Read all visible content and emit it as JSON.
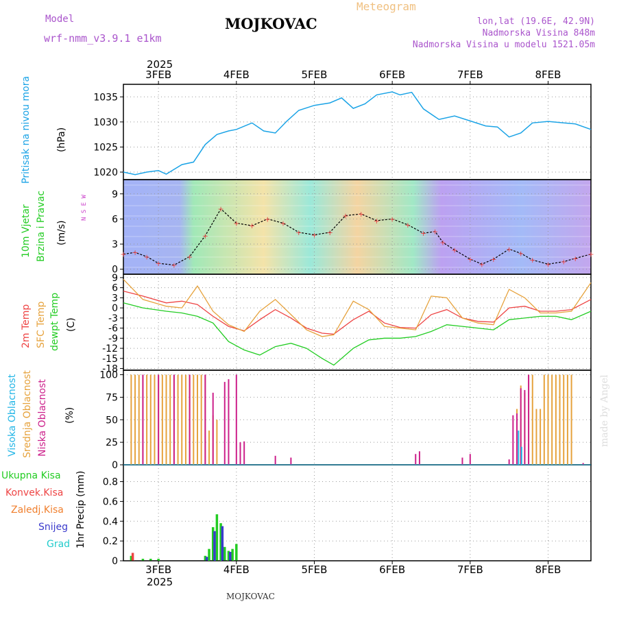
{
  "header": {
    "model_label": "Model",
    "model_name": "wrf-nmm_v3.9.1 e1km",
    "station": "MOJKOVAC",
    "subtitle": "Meteogram",
    "lonlat": "lon,lat (19.6E, 42.9N)",
    "elevation": "Nadmorska Visina 848m",
    "model_elevation": "Nadmorska Visina u modelu 1521.05m",
    "footer_station": "MOJKOVAC",
    "credit": "made by Angel"
  },
  "colors": {
    "pressure": "#1aa3e6",
    "wind_label": "#22cc22",
    "wind_dir_label": "#cc44cc",
    "temp2m": "#ee4444",
    "sfc": "#e6a23c",
    "dewpt": "#22cc22",
    "cloud_high": "#22b5e6",
    "cloud_mid": "#e6a23c",
    "cloud_low": "#cc1f8a",
    "precip_total": "#22cc22",
    "precip_conv": "#ee4444",
    "precip_frz": "#f07f2d",
    "snow": "#3a3acc",
    "hail": "#22cccc",
    "model_label": "#aa55cc",
    "subtitle": "#f0c080"
  },
  "time_axis": {
    "year": "2025",
    "days": [
      "3FEB",
      "4FEB",
      "5FEB",
      "6FEB",
      "7FEB",
      "8FEB"
    ],
    "start_day": 2.55,
    "end_day": 8.55
  },
  "panels": {
    "pressure": {
      "label1": "Pritisak na nivou mora",
      "unit": "(hPa)"
    },
    "wind": {
      "label1": "10m Vjetar",
      "label2": "Brzina i Pravac",
      "unit": "(m/s)",
      "compass": "N  S  E  W"
    },
    "temp": {
      "label1": "2m Temp",
      "label2": "SFC Temp",
      "label3": "dewpt Temp",
      "unit": "(C)"
    },
    "cloud": {
      "label1": "Visoka Oblacnost",
      "label2": "Srednja Oblacnost",
      "label3": "Niska Oblacnost",
      "unit": "(%)"
    },
    "precip": {
      "unit_label": "1hr Precip (mm)",
      "legend": [
        "Ukupna Kisa",
        "Konvek.Kisa",
        "Zaledj.Kisa",
        "Snijeg",
        "Grad"
      ]
    }
  },
  "chart_data": [
    {
      "type": "line",
      "name": "pressure",
      "ylim": [
        1018.5,
        1037.5
      ],
      "yticks": [
        1020,
        1025,
        1030,
        1035
      ],
      "x": [
        2.55,
        2.7,
        2.85,
        3.0,
        3.1,
        3.3,
        3.45,
        3.6,
        3.75,
        3.9,
        4.0,
        4.2,
        4.35,
        4.5,
        4.65,
        4.8,
        5.0,
        5.2,
        5.35,
        5.5,
        5.65,
        5.8,
        6.0,
        6.1,
        6.25,
        6.4,
        6.6,
        6.8,
        7.0,
        7.2,
        7.35,
        7.5,
        7.65,
        7.8,
        8.0,
        8.2,
        8.35,
        8.55
      ],
      "y": [
        1020.0,
        1019.5,
        1020.0,
        1020.3,
        1019.6,
        1021.5,
        1022.0,
        1025.5,
        1027.5,
        1028.2,
        1028.5,
        1029.8,
        1028.2,
        1027.8,
        1030.2,
        1032.3,
        1033.3,
        1033.8,
        1034.8,
        1032.7,
        1033.6,
        1035.4,
        1036.0,
        1035.4,
        1035.9,
        1032.6,
        1030.5,
        1031.2,
        1030.2,
        1029.2,
        1029.0,
        1027.0,
        1027.8,
        1029.8,
        1030.1,
        1029.8,
        1029.6,
        1028.5
      ]
    },
    {
      "type": "line",
      "name": "wind_speed",
      "ylim": [
        -0.6,
        10.7
      ],
      "yticks": [
        0,
        3,
        6,
        9
      ],
      "x": [
        2.55,
        2.7,
        2.85,
        3.0,
        3.2,
        3.4,
        3.6,
        3.8,
        4.0,
        4.2,
        4.4,
        4.6,
        4.8,
        5.0,
        5.2,
        5.4,
        5.6,
        5.8,
        6.0,
        6.2,
        6.4,
        6.55,
        6.65,
        6.8,
        7.0,
        7.15,
        7.3,
        7.5,
        7.65,
        7.8,
        8.0,
        8.2,
        8.35,
        8.55
      ],
      "y": [
        1.8,
        2.0,
        1.5,
        0.7,
        0.5,
        1.5,
        4.0,
        7.2,
        5.5,
        5.2,
        6.0,
        5.5,
        4.4,
        4.1,
        4.4,
        6.4,
        6.6,
        5.8,
        6.0,
        5.3,
        4.3,
        4.5,
        3.2,
        2.3,
        1.2,
        0.6,
        1.2,
        2.4,
        1.9,
        1.1,
        0.6,
        0.9,
        1.3,
        1.8
      ]
    },
    {
      "type": "line",
      "name": "temperature",
      "ylim": [
        -18.5,
        10.0
      ],
      "yticks": [
        -18,
        -15,
        -12,
        -9,
        -6,
        -3,
        0,
        3,
        6,
        9
      ],
      "x": [
        2.55,
        2.8,
        3.1,
        3.3,
        3.5,
        3.7,
        3.9,
        4.1,
        4.3,
        4.5,
        4.7,
        4.9,
        5.1,
        5.25,
        5.5,
        5.7,
        5.9,
        6.1,
        6.3,
        6.5,
        6.7,
        6.9,
        7.1,
        7.3,
        7.5,
        7.7,
        7.9,
        8.1,
        8.3,
        8.55
      ],
      "series": [
        {
          "name": "2m Temp",
          "color": "#ee4444",
          "values": [
            5.0,
            3.5,
            1.5,
            2.0,
            1.0,
            -2.5,
            -5.5,
            -6.8,
            -3.5,
            -0.5,
            -3.0,
            -6.0,
            -7.5,
            -7.8,
            -3.5,
            -1.0,
            -4.5,
            -5.8,
            -6.0,
            -2.0,
            -0.5,
            -3.0,
            -4.0,
            -4.2,
            0.0,
            0.5,
            -1.0,
            -1.0,
            -0.5,
            2.5
          ]
        },
        {
          "name": "SFC Temp",
          "color": "#e6a23c",
          "values": [
            8.5,
            2.5,
            0.5,
            0.0,
            6.5,
            -1.0,
            -5.0,
            -7.0,
            -1.0,
            2.5,
            -2.0,
            -6.5,
            -8.5,
            -8.0,
            2.0,
            -0.5,
            -5.5,
            -6.0,
            -6.5,
            3.5,
            3.0,
            -3.0,
            -4.5,
            -5.0,
            5.5,
            3.0,
            -1.5,
            -1.5,
            -1.0,
            7.5
          ]
        },
        {
          "name": "dewpt Temp",
          "color": "#22cc22",
          "values": [
            1.5,
            0.0,
            -1.0,
            -1.5,
            -2.5,
            -4.5,
            -10.0,
            -12.5,
            -14.0,
            -11.5,
            -10.5,
            -12.0,
            -15.0,
            -17.0,
            -12.0,
            -9.5,
            -9.0,
            -9.0,
            -8.5,
            -7.0,
            -5.0,
            -5.5,
            -6.0,
            -6.5,
            -3.5,
            -3.0,
            -2.5,
            -2.5,
            -3.5,
            -1.0
          ]
        }
      ]
    },
    {
      "type": "bar",
      "name": "cloud_cover",
      "ylim": [
        0,
        105
      ],
      "yticks": [
        0,
        25,
        50,
        75,
        100
      ],
      "series": [
        {
          "name": "Srednja Oblacnost",
          "color": "#e6a23c",
          "x": [
            2.65,
            2.7,
            2.75,
            2.8,
            2.85,
            2.9,
            2.95,
            3.0,
            3.05,
            3.1,
            3.15,
            3.2,
            3.25,
            3.3,
            3.35,
            3.4,
            3.45,
            3.5,
            3.55,
            3.6,
            3.65,
            3.7,
            3.75,
            7.6,
            7.65,
            7.7,
            7.75,
            7.8,
            7.85,
            7.9,
            7.95,
            8.0,
            8.05,
            8.1,
            8.15,
            8.2,
            8.25,
            8.3
          ],
          "values": [
            100,
            100,
            100,
            100,
            100,
            100,
            100,
            100,
            100,
            100,
            100,
            100,
            100,
            100,
            100,
            100,
            100,
            100,
            100,
            100,
            38,
            55,
            50,
            62,
            88,
            80,
            100,
            100,
            62,
            62,
            100,
            100,
            100,
            100,
            100,
            100,
            100,
            100
          ]
        },
        {
          "name": "Niska Oblacnost",
          "color": "#cc1f8a",
          "x": [
            2.8,
            3.0,
            3.2,
            3.4,
            3.6,
            3.7,
            3.85,
            3.9,
            4.0,
            4.05,
            4.1,
            4.5,
            4.7,
            6.3,
            6.35,
            6.9,
            7.0,
            7.5,
            7.55,
            7.6,
            7.65,
            7.7,
            7.75,
            8.45
          ],
          "values": [
            100,
            100,
            100,
            100,
            100,
            80,
            92,
            95,
            100,
            25,
            26,
            10,
            8,
            12,
            15,
            8,
            12,
            6,
            55,
            57,
            85,
            83,
            100,
            2
          ]
        },
        {
          "name": "Visoka Oblacnost",
          "color": "#22b5e6",
          "x": [
            7.62,
            7.66
          ],
          "values": [
            38,
            20
          ]
        }
      ]
    },
    {
      "type": "bar",
      "name": "precipitation",
      "ylim": [
        0,
        0.97
      ],
      "yticks": [
        0,
        0.2,
        0.4,
        0.6,
        0.8
      ],
      "series": [
        {
          "name": "Ukupna Kisa",
          "color": "#22cc22",
          "x": [
            2.65,
            2.8,
            2.9,
            3.0,
            3.6,
            3.65,
            3.7,
            3.75,
            3.8,
            3.85,
            3.9,
            3.95,
            4.0
          ],
          "values": [
            0.05,
            0.02,
            0.02,
            0.02,
            0.05,
            0.12,
            0.34,
            0.47,
            0.38,
            0.14,
            0.1,
            0.12,
            0.17
          ]
        },
        {
          "name": "Konvek.Kisa",
          "color": "#ee4444",
          "x": [
            2.67
          ],
          "values": [
            0.08
          ]
        },
        {
          "name": "Snijeg",
          "color": "#3a3acc",
          "x": [
            3.62,
            3.72,
            3.82,
            3.92
          ],
          "values": [
            0.04,
            0.3,
            0.35,
            0.09
          ]
        }
      ]
    }
  ]
}
